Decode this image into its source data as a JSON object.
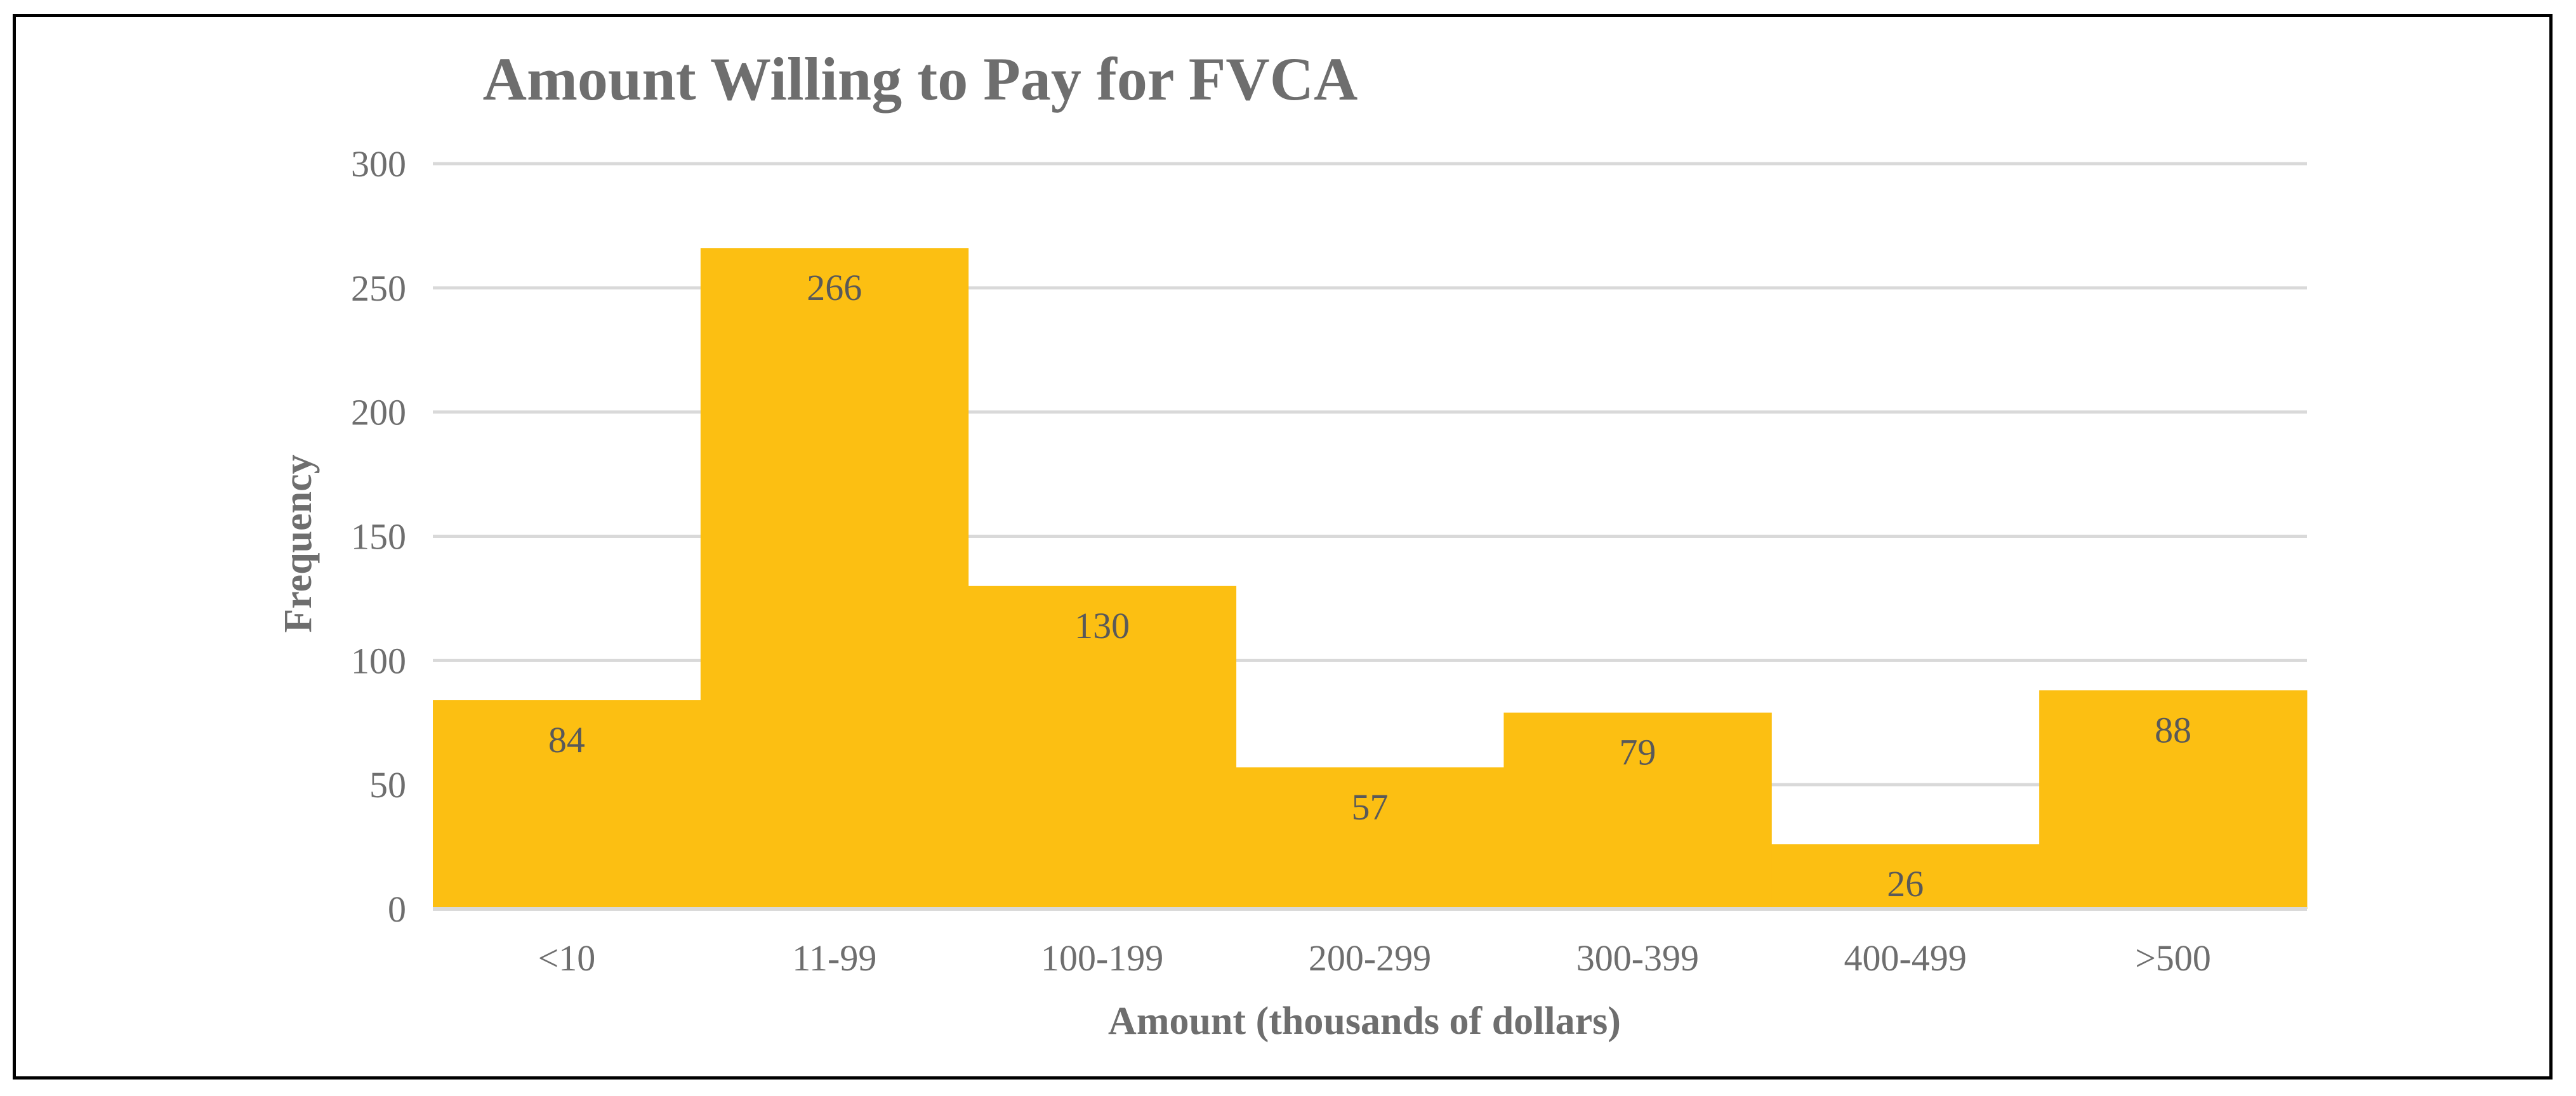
{
  "chart_data": {
    "type": "bar",
    "title": "Amount Willing to Pay for FVCA",
    "xlabel": "Amount (thousands of dollars)",
    "ylabel": "Frequency",
    "categories": [
      "<10",
      "11-99",
      "100-199",
      "200-299",
      "300-399",
      "400-499",
      ">500"
    ],
    "values": [
      84,
      266,
      130,
      57,
      79,
      26,
      88
    ],
    "data_labels": [
      "84",
      "266",
      "130",
      "57",
      "79",
      "26",
      "88"
    ],
    "ylim": [
      0,
      300
    ],
    "yticks": [
      0,
      50,
      100,
      150,
      200,
      250,
      300
    ],
    "ytick_labels": [
      "0",
      "50",
      "100",
      "150",
      "200",
      "250",
      "300"
    ],
    "grid": true,
    "legend": "none",
    "bar_color": "#FCBF12",
    "bar_gap": 0
  }
}
